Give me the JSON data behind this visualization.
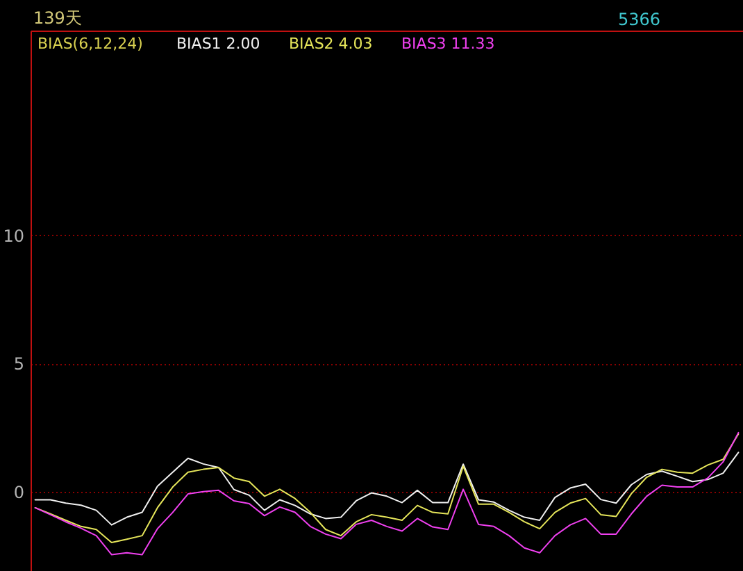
{
  "chart_data": {
    "type": "line",
    "legend_title": "BIAS(6,12,24)",
    "annotations": [
      "139天",
      "5366"
    ],
    "categories": [
      null,
      null,
      null,
      null,
      null,
      null,
      null,
      null,
      null,
      null,
      null,
      null,
      null,
      null,
      null,
      null,
      null,
      null,
      null,
      null,
      null,
      null,
      null,
      null,
      null,
      null,
      null,
      null,
      null,
      null,
      null,
      null,
      null,
      null,
      null,
      null,
      null,
      null,
      null,
      null,
      null,
      null,
      null,
      null,
      null,
      null,
      null
    ],
    "series": [
      {
        "name": "BIAS1 2.00",
        "color": "#f0f0f0",
        "values": [
          -0.32,
          -0.32,
          -0.45,
          -0.53,
          -0.73,
          -1.3,
          -1.0,
          -0.81,
          0.21,
          0.76,
          1.3,
          1.08,
          0.94,
          0.08,
          -0.14,
          -0.73,
          -0.32,
          -0.54,
          -0.87,
          -1.05,
          -1.0,
          -0.36,
          -0.05,
          -0.18,
          -0.43,
          0.05,
          -0.43,
          -0.43,
          1.07,
          -0.32,
          -0.41,
          -0.73,
          -1.0,
          -1.12,
          -0.23,
          0.14,
          0.29,
          -0.31,
          -0.45,
          0.27,
          0.67,
          0.8,
          0.6,
          0.39,
          0.47,
          0.72,
          1.53
        ]
      },
      {
        "name": "BIAS2 4.03",
        "color": "#e6e65a",
        "values": [
          -0.63,
          -0.87,
          -1.12,
          -1.36,
          -1.48,
          -1.99,
          -1.86,
          -1.72,
          -0.63,
          0.18,
          0.76,
          0.87,
          0.94,
          0.53,
          0.39,
          -0.18,
          0.09,
          -0.27,
          -0.81,
          -1.48,
          -1.72,
          -1.18,
          -0.9,
          -1.0,
          -1.12,
          -0.54,
          -0.81,
          -0.87,
          0.99,
          -0.49,
          -0.49,
          -0.81,
          -1.18,
          -1.45,
          -0.81,
          -0.45,
          -0.27,
          -0.9,
          -0.97,
          -0.08,
          0.56,
          0.87,
          0.76,
          0.72,
          1.04,
          1.26,
          2.25
        ]
      },
      {
        "name": "BIAS3 11.33",
        "color": "#f040f0",
        "values": [
          -0.63,
          -0.9,
          -1.18,
          -1.43,
          -1.72,
          -2.46,
          -2.39,
          -2.46,
          -1.45,
          -0.81,
          -0.09,
          0.0,
          0.05,
          -0.36,
          -0.47,
          -0.94,
          -0.6,
          -0.81,
          -1.36,
          -1.66,
          -1.84,
          -1.28,
          -1.12,
          -1.36,
          -1.54,
          -1.05,
          -1.38,
          -1.48,
          0.09,
          -1.28,
          -1.36,
          -1.72,
          -2.2,
          -2.39,
          -1.72,
          -1.3,
          -1.05,
          -1.66,
          -1.66,
          -0.87,
          -0.18,
          0.25,
          0.18,
          0.18,
          0.53,
          1.16,
          2.3
        ]
      }
    ],
    "ylim": [
      -3.1,
      18.0
    ],
    "yticks": [
      0,
      5,
      10
    ],
    "grid": "y",
    "legend": "top left",
    "tick_labels": "y",
    "line_style": "solid"
  }
}
